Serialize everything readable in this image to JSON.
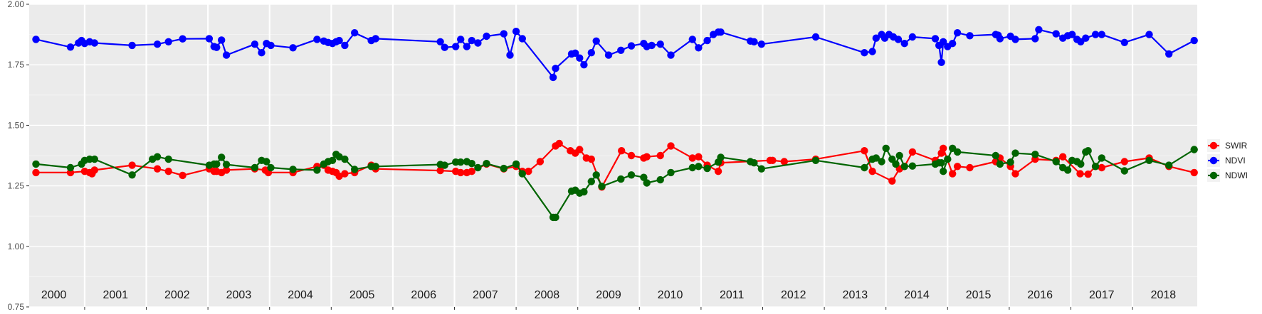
{
  "chart_data": {
    "type": "line",
    "title": "",
    "xlabel": "",
    "ylabel": "",
    "x_range": [
      1999.6,
      2018.55
    ],
    "ylim": [
      0.75,
      2.0
    ],
    "y_ticks": [
      "0.75",
      "1.00",
      "1.25",
      "1.50",
      "1.75",
      "2.00"
    ],
    "y_tick_values": [
      0.75,
      1.0,
      1.25,
      1.5,
      1.75,
      2.0
    ],
    "years": [
      "2000",
      "2001",
      "2002",
      "2003",
      "2004",
      "2005",
      "2006",
      "2007",
      "2008",
      "2009",
      "2010",
      "2011",
      "2012",
      "2013",
      "2014",
      "2015",
      "2016",
      "2017",
      "2018"
    ],
    "grid": true,
    "legend_position": "right",
    "series": [
      {
        "name": "SWIR",
        "color": "#ff0000",
        "x": [
          1999.71,
          2000.27,
          2000.5,
          2000.58,
          2000.62,
          2000.66,
          2001.27,
          2001.68,
          2001.86,
          2002.09,
          2002.52,
          2002.6,
          2002.64,
          2002.72,
          2002.8,
          2003.26,
          2003.43,
          2003.48,
          2003.88,
          2004.27,
          2004.38,
          2004.45,
          2004.52,
          2004.58,
          2004.63,
          2004.72,
          2004.88,
          2005.15,
          2005.22,
          2006.27,
          2006.52,
          2006.6,
          2006.7,
          2006.78,
          2007.02,
          2007.3,
          2007.5,
          2007.6,
          2007.7,
          2007.89,
          2008.14,
          2008.2,
          2008.38,
          2008.46,
          2008.53,
          2008.64,
          2008.72,
          2008.89,
          2009.21,
          2009.37,
          2009.57,
          2009.62,
          2009.84,
          2010.01,
          2010.36,
          2010.46,
          2010.6,
          2010.78,
          2010.82,
          2011.62,
          2011.66,
          2011.85,
          2012.36,
          2013.15,
          2013.28,
          2013.6,
          2013.72,
          2013.8,
          2013.93,
          2014.3,
          2014.4,
          2014.43,
          2014.58,
          2014.66,
          2014.86,
          2015.28,
          2015.35,
          2015.52,
          2015.6,
          2015.92,
          2016.26,
          2016.37,
          2016.65,
          2016.78,
          2016.9,
          2017.0,
          2017.37,
          2017.77,
          2018.09,
          2018.5
        ],
        "values": [
          1.305,
          1.305,
          1.31,
          1.305,
          1.3,
          1.315,
          1.335,
          1.32,
          1.31,
          1.293,
          1.32,
          1.31,
          1.31,
          1.305,
          1.315,
          1.32,
          1.315,
          1.305,
          1.305,
          1.33,
          1.335,
          1.315,
          1.31,
          1.305,
          1.29,
          1.3,
          1.305,
          1.335,
          1.32,
          1.313,
          1.31,
          1.305,
          1.305,
          1.31,
          1.34,
          1.32,
          1.33,
          1.31,
          1.31,
          1.35,
          1.415,
          1.425,
          1.395,
          1.385,
          1.4,
          1.365,
          1.36,
          1.245,
          1.395,
          1.375,
          1.365,
          1.37,
          1.375,
          1.415,
          1.365,
          1.37,
          1.335,
          1.31,
          1.345,
          1.355,
          1.355,
          1.35,
          1.36,
          1.395,
          1.31,
          1.27,
          1.32,
          1.33,
          1.39,
          1.355,
          1.385,
          1.405,
          1.3,
          1.33,
          1.325,
          1.35,
          1.365,
          1.33,
          1.3,
          1.36,
          1.355,
          1.37,
          1.3,
          1.298,
          1.33,
          1.325,
          1.35,
          1.365,
          1.33,
          1.305
        ]
      },
      {
        "name": "NDVI",
        "color": "#0000ff",
        "x": [
          1999.71,
          2000.27,
          2000.4,
          2000.45,
          2000.5,
          2000.58,
          2000.66,
          2001.27,
          2001.68,
          2001.86,
          2002.09,
          2002.52,
          2002.6,
          2002.64,
          2002.72,
          2002.8,
          2003.26,
          2003.37,
          2003.45,
          2003.52,
          2003.88,
          2004.27,
          2004.38,
          2004.45,
          2004.52,
          2004.58,
          2004.63,
          2004.72,
          2004.88,
          2005.15,
          2005.22,
          2006.27,
          2006.34,
          2006.52,
          2006.6,
          2006.7,
          2006.78,
          2006.88,
          2007.02,
          2007.3,
          2007.4,
          2007.5,
          2007.6,
          2008.1,
          2008.14,
          2008.4,
          2008.46,
          2008.53,
          2008.6,
          2008.72,
          2008.8,
          2009.0,
          2009.2,
          2009.37,
          2009.57,
          2009.62,
          2009.7,
          2009.84,
          2010.01,
          2010.36,
          2010.46,
          2010.6,
          2010.7,
          2010.78,
          2010.82,
          2011.3,
          2011.36,
          2011.48,
          2012.36,
          2013.15,
          2013.28,
          2013.34,
          2013.43,
          2013.48,
          2013.55,
          2013.62,
          2013.7,
          2013.8,
          2013.93,
          2014.3,
          2014.36,
          2014.4,
          2014.43,
          2014.5,
          2014.58,
          2014.66,
          2014.86,
          2015.28,
          2015.32,
          2015.35,
          2015.52,
          2015.6,
          2015.92,
          2015.98,
          2016.26,
          2016.37,
          2016.45,
          2016.52,
          2016.6,
          2016.66,
          2016.74,
          2016.9,
          2017.0,
          2017.37,
          2017.77,
          2018.09,
          2018.5
        ],
        "values": [
          1.855,
          1.823,
          1.84,
          1.85,
          1.838,
          1.845,
          1.84,
          1.83,
          1.835,
          1.845,
          1.857,
          1.858,
          1.825,
          1.822,
          1.852,
          1.79,
          1.835,
          1.8,
          1.838,
          1.83,
          1.82,
          1.855,
          1.848,
          1.842,
          1.838,
          1.845,
          1.85,
          1.83,
          1.882,
          1.85,
          1.858,
          1.845,
          1.822,
          1.825,
          1.855,
          1.825,
          1.85,
          1.84,
          1.868,
          1.878,
          1.79,
          1.888,
          1.858,
          1.698,
          1.735,
          1.795,
          1.798,
          1.778,
          1.75,
          1.8,
          1.848,
          1.79,
          1.81,
          1.828,
          1.838,
          1.825,
          1.83,
          1.835,
          1.79,
          1.855,
          1.82,
          1.85,
          1.875,
          1.885,
          1.885,
          1.848,
          1.845,
          1.835,
          1.865,
          1.8,
          1.805,
          1.86,
          1.875,
          1.86,
          1.875,
          1.865,
          1.855,
          1.838,
          1.865,
          1.858,
          1.83,
          1.76,
          1.845,
          1.825,
          1.838,
          1.882,
          1.87,
          1.875,
          1.872,
          1.858,
          1.868,
          1.855,
          1.858,
          1.895,
          1.878,
          1.86,
          1.87,
          1.875,
          1.855,
          1.845,
          1.86,
          1.875,
          1.875,
          1.842,
          1.875,
          1.795,
          1.85
        ]
      },
      {
        "name": "NDWI",
        "color": "#006400",
        "x": [
          1999.71,
          2000.27,
          2000.45,
          2000.5,
          2000.58,
          2000.66,
          2001.27,
          2001.6,
          2001.68,
          2001.86,
          2002.52,
          2002.6,
          2002.64,
          2002.72,
          2002.8,
          2003.26,
          2003.37,
          2003.45,
          2003.52,
          2003.88,
          2004.27,
          2004.38,
          2004.45,
          2004.52,
          2004.58,
          2004.63,
          2004.72,
          2004.88,
          2005.15,
          2005.22,
          2006.27,
          2006.34,
          2006.52,
          2006.6,
          2006.7,
          2006.78,
          2006.88,
          2007.02,
          2007.3,
          2007.5,
          2007.6,
          2008.1,
          2008.14,
          2008.4,
          2008.46,
          2008.53,
          2008.6,
          2008.72,
          2008.8,
          2008.89,
          2009.2,
          2009.37,
          2009.57,
          2009.62,
          2009.84,
          2010.01,
          2010.36,
          2010.46,
          2010.6,
          2010.78,
          2010.82,
          2011.3,
          2011.36,
          2011.48,
          2012.36,
          2013.15,
          2013.28,
          2013.34,
          2013.43,
          2013.5,
          2013.6,
          2013.66,
          2013.72,
          2013.8,
          2013.93,
          2014.3,
          2014.36,
          2014.4,
          2014.43,
          2014.5,
          2014.58,
          2014.66,
          2015.28,
          2015.35,
          2015.52,
          2015.6,
          2015.92,
          2016.26,
          2016.37,
          2016.45,
          2016.52,
          2016.6,
          2016.66,
          2016.74,
          2016.78,
          2016.9,
          2017.0,
          2017.37,
          2017.77,
          2018.09,
          2018.5
        ],
        "values": [
          1.34,
          1.325,
          1.34,
          1.355,
          1.36,
          1.36,
          1.295,
          1.36,
          1.37,
          1.36,
          1.335,
          1.34,
          1.34,
          1.368,
          1.338,
          1.325,
          1.355,
          1.35,
          1.325,
          1.318,
          1.315,
          1.34,
          1.35,
          1.355,
          1.38,
          1.37,
          1.36,
          1.318,
          1.33,
          1.33,
          1.338,
          1.335,
          1.348,
          1.348,
          1.35,
          1.342,
          1.325,
          1.342,
          1.322,
          1.34,
          1.3,
          1.12,
          1.12,
          1.228,
          1.232,
          1.22,
          1.225,
          1.268,
          1.295,
          1.248,
          1.278,
          1.295,
          1.285,
          1.262,
          1.275,
          1.305,
          1.325,
          1.33,
          1.322,
          1.348,
          1.368,
          1.35,
          1.345,
          1.32,
          1.355,
          1.325,
          1.36,
          1.365,
          1.35,
          1.405,
          1.36,
          1.34,
          1.375,
          1.33,
          1.332,
          1.34,
          1.345,
          1.345,
          1.31,
          1.36,
          1.405,
          1.39,
          1.375,
          1.34,
          1.348,
          1.385,
          1.38,
          1.35,
          1.325,
          1.315,
          1.355,
          1.35,
          1.34,
          1.39,
          1.395,
          1.33,
          1.365,
          1.312,
          1.355,
          1.335,
          1.4
        ]
      }
    ]
  }
}
